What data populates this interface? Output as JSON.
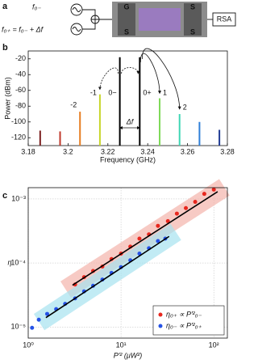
{
  "panels": {
    "a": {
      "label": "a",
      "source_1": "f₀₋",
      "source_2": "f₀₊ = f₀₋ + Δf",
      "pads": [
        "G",
        "S",
        "S",
        "S"
      ],
      "analyzer": "RSA"
    }
  },
  "chart_data": [
    {
      "type": "stem",
      "panel_label": "b",
      "x_label": "Frequency (GHz)",
      "y_label": "Power (dBm)",
      "x": [
        3.186,
        3.196,
        3.206,
        3.216,
        3.226,
        3.236,
        3.246,
        3.256,
        3.266,
        3.276
      ],
      "values": [
        -111,
        -112,
        -87,
        -65,
        -18,
        -18,
        -70,
        -90,
        -100,
        -110
      ],
      "colors": [
        "#7a1f1f",
        "#c0392b",
        "#e67e22",
        "#c8d62b",
        "#000000",
        "#000000",
        "#7ed957",
        "#3fd6b4",
        "#2f7fd8",
        "#1f3a93"
      ],
      "stem_labels": [
        null,
        null,
        "-2",
        "-1",
        "0−",
        "0+",
        "1",
        "2",
        null,
        null
      ],
      "delta_label": "Δf",
      "xlim": [
        3.18,
        3.28
      ],
      "xticks": [
        3.18,
        3.2,
        3.22,
        3.24,
        3.26,
        3.28
      ],
      "ylim": [
        -130,
        -10
      ],
      "yticks": [
        -120,
        -100,
        -80,
        -60,
        -40,
        -20
      ]
    },
    {
      "type": "scatter",
      "panel_label": "c",
      "x_label": "P′² (μW²)",
      "y_label": "η",
      "xscale": "log",
      "yscale": "log",
      "grid": true,
      "legend": "lower right",
      "xlim": [
        1,
        140
      ],
      "ylim": [
        6.7e-06,
        0.0015
      ],
      "xticks": [
        {
          "value": 1,
          "label": "10⁰"
        },
        {
          "value": 10,
          "label": "10¹"
        },
        {
          "value": 100,
          "label": "10²"
        }
      ],
      "yticks": [
        {
          "value": 1e-05,
          "label": "10⁻⁵"
        },
        {
          "value": 0.0001,
          "label": "10⁻⁴"
        },
        {
          "value": 0.001,
          "label": "10⁻³"
        }
      ],
      "series": [
        {
          "name": "η₀₊ ∝ P′²₀₋",
          "color": "#e8271e",
          "band_color": "#f4b3ab",
          "x": [
            3.2,
            4.0,
            5.0,
            6.3,
            7.9,
            10,
            12.6,
            15.8,
            20,
            25,
            32,
            40,
            50,
            63,
            79,
            100
          ],
          "values": [
            4.6e-05,
            6e-05,
            7.5e-05,
            8.8e-05,
            0.000115,
            0.00014,
            0.00018,
            0.00024,
            0.00028,
            0.00038,
            0.00045,
            0.00059,
            0.00072,
            0.0009,
            0.0012,
            0.0014
          ],
          "fit": {
            "x": [
              3.0,
              110
            ],
            "values": [
              4.5e-05,
              0.0013
            ]
          }
        },
        {
          "name": "η₀₋ ∝ P′²₀₊",
          "color": "#2552e6",
          "band_color": "#a6e2ef",
          "x": [
            1.1,
            1.3,
            1.6,
            2.0,
            2.5,
            3.2,
            4.0,
            5.0,
            6.3,
            7.9,
            10,
            12.6,
            15.8,
            20,
            25,
            30
          ],
          "values": [
            9.7e-06,
            1.3e-05,
            1.6e-05,
            1.9e-05,
            2.3e-05,
            2.8e-05,
            3.6e-05,
            4.4e-05,
            5.5e-05,
            7e-05,
            8.6e-05,
            0.00011,
            0.00014,
            0.00017,
            0.00022,
            0.00024
          ],
          "fit": {
            "x": [
              1.55,
              33
            ],
            "values": [
              1.4e-05,
              0.00026
            ]
          }
        }
      ]
    }
  ]
}
